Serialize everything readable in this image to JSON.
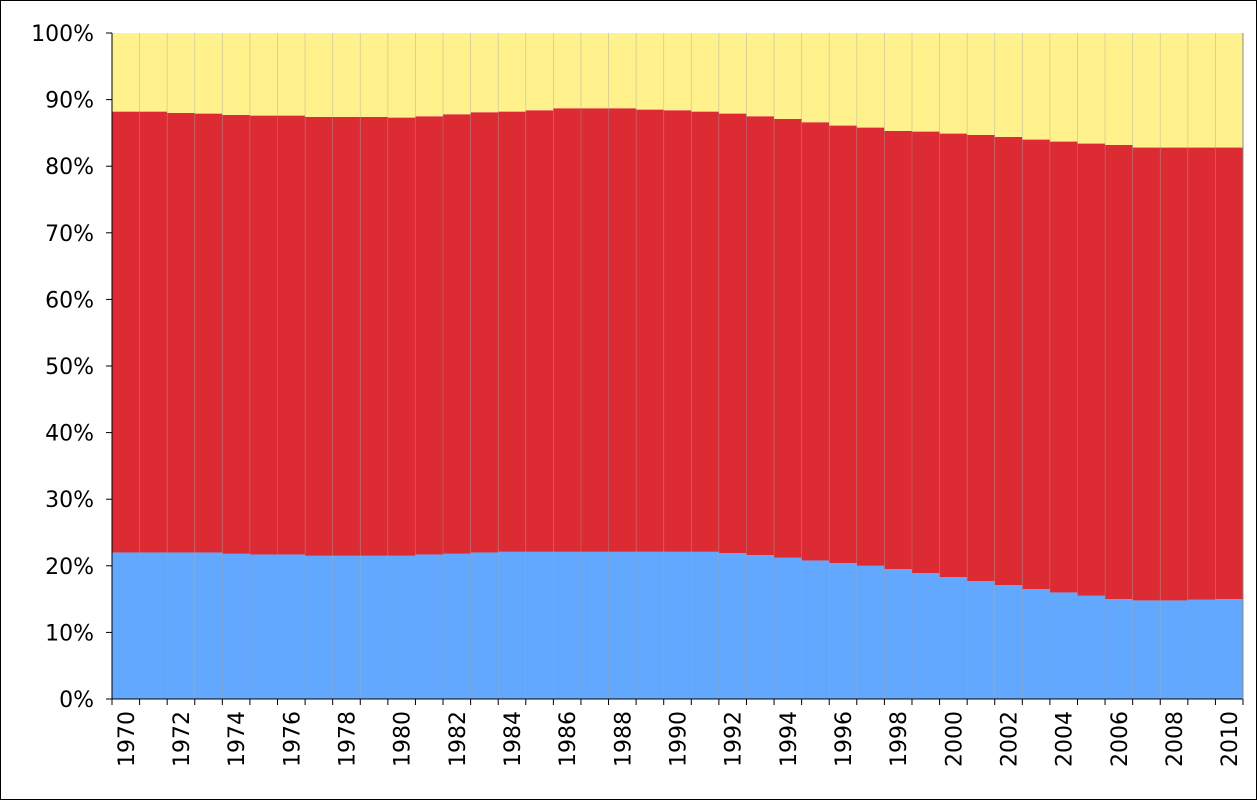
{
  "chart_data": {
    "type": "bar",
    "stacked": "percent",
    "categories": [
      "1970",
      "1971",
      "1972",
      "1973",
      "1974",
      "1975",
      "1976",
      "1977",
      "1978",
      "1979",
      "1980",
      "1981",
      "1982",
      "1983",
      "1984",
      "1985",
      "1986",
      "1987",
      "1988",
      "1989",
      "1990",
      "1991",
      "1992",
      "1993",
      "1994",
      "1995",
      "1996",
      "1997",
      "1998",
      "1999",
      "2000",
      "2001",
      "2002",
      "2003",
      "2004",
      "2005",
      "2006",
      "2007",
      "2008",
      "2009",
      "2010"
    ],
    "x_tick_labels": [
      "1970",
      "1972",
      "1974",
      "1976",
      "1978",
      "1980",
      "1982",
      "1984",
      "1986",
      "1988",
      "1990",
      "1992",
      "1994",
      "1996",
      "1998",
      "2000",
      "2002",
      "2004",
      "2006",
      "2008",
      "2010"
    ],
    "y_tick_labels": [
      "0%",
      "10%",
      "20%",
      "30%",
      "40%",
      "50%",
      "60%",
      "70%",
      "80%",
      "90%",
      "100%"
    ],
    "ylim": [
      0,
      100
    ],
    "grid": false,
    "legend": "none",
    "series": [
      {
        "color": "#62a8ff",
        "values": [
          22.0,
          22.0,
          22.0,
          22.0,
          21.8,
          21.7,
          21.7,
          21.5,
          21.5,
          21.5,
          21.5,
          21.7,
          21.8,
          22.0,
          22.1,
          22.1,
          22.1,
          22.1,
          22.1,
          22.1,
          22.1,
          22.1,
          21.9,
          21.6,
          21.2,
          20.8,
          20.4,
          20.0,
          19.5,
          18.9,
          18.3,
          17.7,
          17.1,
          16.5,
          16.0,
          15.5,
          15.0,
          14.8,
          14.8,
          14.9,
          15.0
        ]
      },
      {
        "color": "#dd2b33",
        "values": [
          66.2,
          66.2,
          66.0,
          65.9,
          65.9,
          65.9,
          65.9,
          65.9,
          65.9,
          65.9,
          65.8,
          65.8,
          66.0,
          66.1,
          66.1,
          66.3,
          66.6,
          66.6,
          66.6,
          66.4,
          66.3,
          66.1,
          66.0,
          65.9,
          65.9,
          65.8,
          65.7,
          65.8,
          65.8,
          66.3,
          66.6,
          67.0,
          67.3,
          67.5,
          67.7,
          67.9,
          68.2,
          68.0,
          68.0,
          67.9,
          67.8
        ]
      },
      {
        "color": "#fff28d",
        "values": [
          11.8,
          11.8,
          12.0,
          12.1,
          12.3,
          12.4,
          12.4,
          12.6,
          12.6,
          12.6,
          12.7,
          12.5,
          12.2,
          11.9,
          11.8,
          11.6,
          11.3,
          11.3,
          11.3,
          11.5,
          11.6,
          11.8,
          12.1,
          12.5,
          12.9,
          13.4,
          13.9,
          14.2,
          14.7,
          14.8,
          15.1,
          15.3,
          15.6,
          16.0,
          16.3,
          16.6,
          16.8,
          17.2,
          17.2,
          17.2,
          17.2
        ]
      }
    ]
  }
}
